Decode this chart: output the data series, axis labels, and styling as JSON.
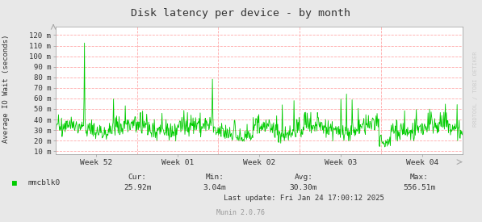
{
  "title": "Disk latency per device - by month",
  "ylabel": "Average IO Wait (seconds)",
  "right_label": "RRDTOOL / TOBI OETIKER",
  "yticks": [
    "10 m",
    "20 m",
    "30 m",
    "40 m",
    "50 m",
    "60 m",
    "70 m",
    "80 m",
    "90 m",
    "100 m",
    "110 m",
    "120 m"
  ],
  "ytick_vals": [
    0.01,
    0.02,
    0.03,
    0.04,
    0.05,
    0.06,
    0.07,
    0.08,
    0.09,
    0.1,
    0.11,
    0.12
  ],
  "ylim": [
    0.007,
    0.128
  ],
  "xtick_labels": [
    "Week 52",
    "Week 01",
    "Week 02",
    "Week 03",
    "Week 04"
  ],
  "xtick_pos": [
    3.5,
    10.5,
    17.5,
    24.5,
    31.5
  ],
  "week_vlines": [
    7.0,
    14.0,
    21.0,
    28.0,
    35.0
  ],
  "xlim": [
    0,
    35
  ],
  "legend_label": "mmcblk0",
  "legend_color": "#00cc00",
  "cur_label": "Cur:",
  "cur": "25.92m",
  "min_label": "Min:",
  "min": "3.04m",
  "avg_label": "Avg:",
  "avg": "30.30m",
  "max_label": "Max:",
  "max": "556.51m",
  "last_update": "Last update: Fri Jan 24 17:00:12 2025",
  "munin_version": "Munin 2.0.76",
  "bg_color": "#e8e8e8",
  "plot_bg_color": "#ffffff",
  "grid_color": "#ffaaaa",
  "line_color": "#00cc00",
  "title_color": "#333333",
  "font_color": "#333333",
  "right_label_color": "#cccccc",
  "munin_color": "#999999"
}
